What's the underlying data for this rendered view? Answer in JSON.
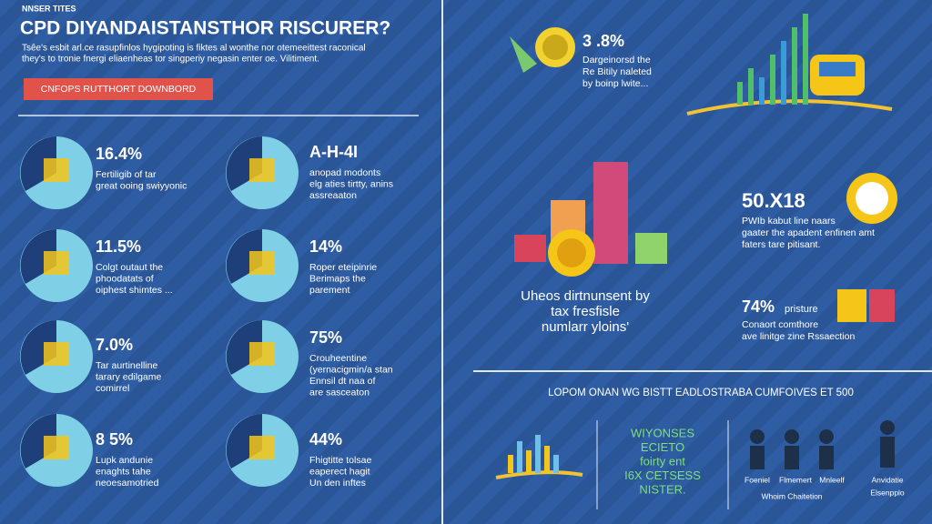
{
  "header": {
    "kicker": "NNSER TITES",
    "title": "CPD DIYANDAISTANSTHOR RISCURER?",
    "subtitle": [
      "Tsêe's esbit arl.ce rasupfinlos hygipoting is fiktes al wonthe nor otemeeittest raconical",
      "they's to tronie fnergi eliaenheas tor singperiy negasin enter oe. Vilitiment."
    ],
    "button": "CNFOPS RUTTHORT DOWNBORD"
  },
  "stats": [
    {
      "value": "16.4%",
      "lines": [
        "Fertiligib of tar",
        "great ooing swiyyonic"
      ]
    },
    {
      "value": "A-H-4I",
      "lines": [
        "anopad modonts",
        "elg aties tirtty, anins",
        "assreaaton"
      ]
    },
    {
      "value": "11.5%",
      "lines": [
        "Colgt outaut the",
        "phoodatats of",
        "oiphest shimtes ..."
      ]
    },
    {
      "value": "14%",
      "lines": [
        "Roper eteipinrie",
        "Berimaps the",
        "parement"
      ]
    },
    {
      "value": "7.0%",
      "lines": [
        "Tar aurtinelline",
        "tarary edilgame",
        "comirrel"
      ]
    },
    {
      "value": "75%",
      "lines": [
        "Crouheentine",
        "(yernacigmin/a stan",
        "Ennsil dt naa of",
        "are sasceaton"
      ]
    },
    {
      "value": "8 5%",
      "lines": [
        "Lupk andunie",
        "enaghts tahe",
        "neoesamotried"
      ]
    },
    {
      "value": "44%",
      "lines": [
        "Fhigtitte tolsae",
        "eaperect hagit",
        "Un den inftes"
      ]
    }
  ],
  "right": {
    "top": {
      "value": "3 .8%",
      "lines": [
        "Dargeinorsd the",
        "Re Bitily naleted",
        "by boinp lwite..."
      ]
    },
    "caption": [
      "Uheos dirtnunsent by",
      "tax fresfisle",
      "numlarr yloins'"
    ],
    "stat2": {
      "value": "50.X18",
      "lines": [
        "PWIb kabut line naars",
        "gaater the apadent enfinen amt",
        "faters tare pitisant."
      ]
    },
    "stat3": {
      "value": "74%",
      "label": "pristure",
      "lines": [
        "Conaort comthore",
        "ave linitge zine Rssaection"
      ]
    },
    "bottom_title": "LOPOM ONAN WG BISTT EADLOSTRABA CUMFOIVES ET 500",
    "bottom_text": [
      "WIYONSES",
      "ECIETO",
      "foirty ent",
      "I6X CETSESS",
      "NISTER."
    ],
    "people": [
      "Foeniel",
      "Flmemert",
      "Mnleelf",
      "Whoim Chaitetion",
      "Anvidatie",
      "Elsenpplo"
    ]
  }
}
